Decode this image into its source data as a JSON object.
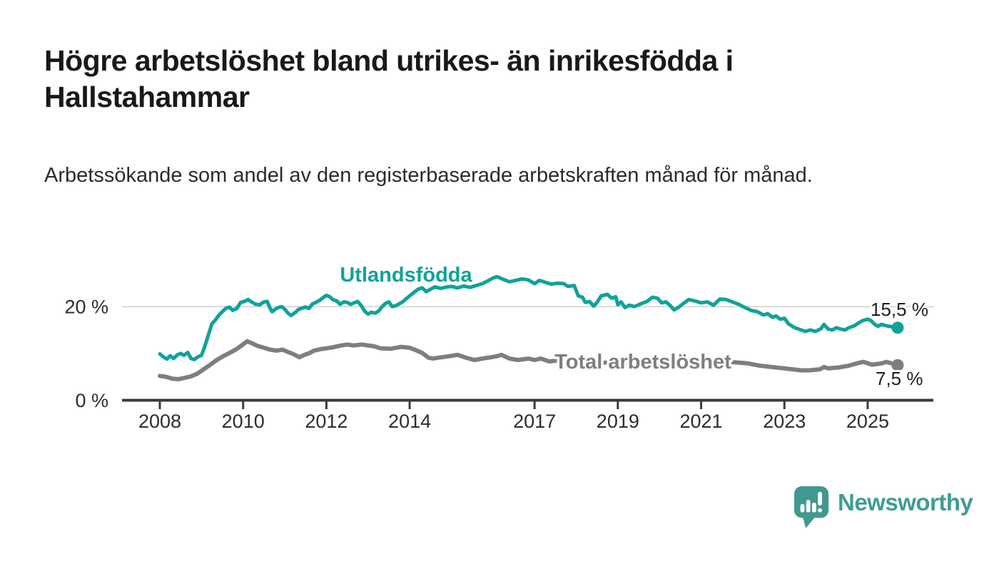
{
  "header": {
    "title": "Högre arbetslöshet bland utrikes- än inrikesfödda i Hallstahammar",
    "subtitle": "Arbetssökande som andel av den registerbaserade arbetskraften månad för månad."
  },
  "footer": {
    "brand": "Newsworthy",
    "logo_icon": "speech-bubble-bar-chart-icon"
  },
  "colors": {
    "foreign_born_line": "#10a29a",
    "total_line": "#7e7e82",
    "axis": "#3b3b3b",
    "gridline": "#d9d9d9",
    "text": "#191919",
    "brand_teal": "#41988f"
  },
  "chart_data": {
    "type": "line",
    "unit": "%",
    "x_ticks": [
      2008,
      2010,
      2012,
      2014,
      2017,
      2019,
      2021,
      2023,
      2025
    ],
    "y_ticks": [
      {
        "value": 0,
        "label": "0 %"
      },
      {
        "value": 20,
        "label": "20 %"
      }
    ],
    "xlim": [
      2008,
      2025.75
    ],
    "ylim": [
      0,
      27
    ],
    "grid": "horizontal-only",
    "legend_position": "inline-labels-on-lines",
    "series": [
      {
        "name": "Utlandsfödda",
        "color": "#10a29a",
        "end_value_label": "15,5 %",
        "points": [
          [
            2008.0,
            9.9
          ],
          [
            2008.08,
            9.3
          ],
          [
            2008.17,
            8.8
          ],
          [
            2008.25,
            9.5
          ],
          [
            2008.33,
            8.9
          ],
          [
            2008.42,
            9.7
          ],
          [
            2008.5,
            10.0
          ],
          [
            2008.58,
            9.6
          ],
          [
            2008.67,
            10.2
          ],
          [
            2008.75,
            8.9
          ],
          [
            2008.83,
            8.7
          ],
          [
            2008.92,
            9.3
          ],
          [
            2009.0,
            9.6
          ],
          [
            2009.08,
            11.5
          ],
          [
            2009.15,
            13.5
          ],
          [
            2009.25,
            16.3
          ],
          [
            2009.33,
            17.1
          ],
          [
            2009.42,
            18.2
          ],
          [
            2009.5,
            18.9
          ],
          [
            2009.58,
            19.6
          ],
          [
            2009.67,
            19.9
          ],
          [
            2009.75,
            19.2
          ],
          [
            2009.85,
            19.6
          ],
          [
            2009.94,
            20.9
          ],
          [
            2010.03,
            21.1
          ],
          [
            2010.12,
            21.5
          ],
          [
            2010.2,
            21.0
          ],
          [
            2010.3,
            20.5
          ],
          [
            2010.4,
            20.4
          ],
          [
            2010.5,
            21.0
          ],
          [
            2010.58,
            21.1
          ],
          [
            2010.65,
            19.6
          ],
          [
            2010.7,
            18.9
          ],
          [
            2010.78,
            19.5
          ],
          [
            2010.85,
            19.8
          ],
          [
            2010.93,
            20.0
          ],
          [
            2011.0,
            19.4
          ],
          [
            2011.08,
            18.6
          ],
          [
            2011.15,
            18.1
          ],
          [
            2011.25,
            18.7
          ],
          [
            2011.33,
            19.4
          ],
          [
            2011.42,
            19.7
          ],
          [
            2011.5,
            19.9
          ],
          [
            2011.58,
            19.6
          ],
          [
            2011.67,
            20.6
          ],
          [
            2011.75,
            20.9
          ],
          [
            2011.83,
            21.3
          ],
          [
            2011.92,
            21.9
          ],
          [
            2012.0,
            22.4
          ],
          [
            2012.08,
            22.1
          ],
          [
            2012.15,
            21.5
          ],
          [
            2012.25,
            21.2
          ],
          [
            2012.33,
            20.5
          ],
          [
            2012.42,
            21.0
          ],
          [
            2012.5,
            20.9
          ],
          [
            2012.58,
            20.5
          ],
          [
            2012.67,
            20.8
          ],
          [
            2012.75,
            21.1
          ],
          [
            2012.83,
            20.3
          ],
          [
            2012.92,
            19.0
          ],
          [
            2013.0,
            18.4
          ],
          [
            2013.08,
            18.8
          ],
          [
            2013.17,
            18.6
          ],
          [
            2013.25,
            19.0
          ],
          [
            2013.33,
            19.9
          ],
          [
            2013.42,
            20.7
          ],
          [
            2013.5,
            21.0
          ],
          [
            2013.58,
            20.0
          ],
          [
            2013.67,
            20.2
          ],
          [
            2013.75,
            20.6
          ],
          [
            2013.83,
            21.0
          ],
          [
            2013.92,
            21.7
          ],
          [
            2014.0,
            22.3
          ],
          [
            2014.1,
            23.0
          ],
          [
            2014.2,
            23.7
          ],
          [
            2014.3,
            24.0
          ],
          [
            2014.4,
            23.2
          ],
          [
            2014.5,
            23.7
          ],
          [
            2014.6,
            24.2
          ],
          [
            2014.75,
            23.9
          ],
          [
            2014.9,
            24.2
          ],
          [
            2015.0,
            24.3
          ],
          [
            2015.15,
            24.0
          ],
          [
            2015.3,
            24.4
          ],
          [
            2015.45,
            24.1
          ],
          [
            2015.6,
            24.5
          ],
          [
            2015.75,
            24.9
          ],
          [
            2015.9,
            25.6
          ],
          [
            2016.0,
            26.1
          ],
          [
            2016.1,
            26.4
          ],
          [
            2016.25,
            25.8
          ],
          [
            2016.4,
            25.3
          ],
          [
            2016.55,
            25.6
          ],
          [
            2016.7,
            25.9
          ],
          [
            2016.85,
            25.7
          ],
          [
            2017.0,
            24.9
          ],
          [
            2017.12,
            25.6
          ],
          [
            2017.25,
            25.2
          ],
          [
            2017.4,
            24.8
          ],
          [
            2017.55,
            25.0
          ],
          [
            2017.7,
            24.9
          ],
          [
            2017.8,
            24.3
          ],
          [
            2017.95,
            24.5
          ],
          [
            2018.05,
            22.3
          ],
          [
            2018.15,
            22.0
          ],
          [
            2018.22,
            20.9
          ],
          [
            2018.32,
            21.1
          ],
          [
            2018.42,
            20.1
          ],
          [
            2018.5,
            20.9
          ],
          [
            2018.6,
            22.3
          ],
          [
            2018.75,
            22.6
          ],
          [
            2018.85,
            21.8
          ],
          [
            2018.95,
            22.1
          ],
          [
            2019.0,
            20.4
          ],
          [
            2019.08,
            21.0
          ],
          [
            2019.17,
            19.8
          ],
          [
            2019.28,
            20.3
          ],
          [
            2019.4,
            20.0
          ],
          [
            2019.55,
            20.6
          ],
          [
            2019.7,
            21.1
          ],
          [
            2019.83,
            22.0
          ],
          [
            2019.95,
            21.8
          ],
          [
            2020.05,
            20.8
          ],
          [
            2020.15,
            21.0
          ],
          [
            2020.25,
            20.3
          ],
          [
            2020.35,
            19.3
          ],
          [
            2020.45,
            19.8
          ],
          [
            2020.55,
            20.5
          ],
          [
            2020.7,
            21.5
          ],
          [
            2020.85,
            21.2
          ],
          [
            2021.0,
            20.8
          ],
          [
            2021.15,
            21.0
          ],
          [
            2021.3,
            20.3
          ],
          [
            2021.45,
            21.6
          ],
          [
            2021.6,
            21.5
          ],
          [
            2021.75,
            21.0
          ],
          [
            2021.9,
            20.5
          ],
          [
            2022.05,
            19.8
          ],
          [
            2022.2,
            19.2
          ],
          [
            2022.35,
            18.9
          ],
          [
            2022.5,
            18.2
          ],
          [
            2022.6,
            18.5
          ],
          [
            2022.72,
            17.7
          ],
          [
            2022.8,
            18.0
          ],
          [
            2022.9,
            17.3
          ],
          [
            2023.0,
            17.5
          ],
          [
            2023.1,
            16.3
          ],
          [
            2023.25,
            15.5
          ],
          [
            2023.4,
            15.0
          ],
          [
            2023.5,
            14.7
          ],
          [
            2023.62,
            15.0
          ],
          [
            2023.75,
            14.7
          ],
          [
            2023.88,
            15.3
          ],
          [
            2023.95,
            16.2
          ],
          [
            2024.05,
            15.2
          ],
          [
            2024.15,
            15.0
          ],
          [
            2024.25,
            15.5
          ],
          [
            2024.35,
            15.2
          ],
          [
            2024.45,
            15.0
          ],
          [
            2024.55,
            15.5
          ],
          [
            2024.68,
            15.9
          ],
          [
            2024.78,
            16.5
          ],
          [
            2024.88,
            17.0
          ],
          [
            2025.0,
            17.3
          ],
          [
            2025.08,
            17.0
          ],
          [
            2025.17,
            16.2
          ],
          [
            2025.25,
            15.8
          ],
          [
            2025.33,
            16.2
          ],
          [
            2025.45,
            15.9
          ],
          [
            2025.58,
            15.7
          ],
          [
            2025.72,
            15.5
          ]
        ]
      },
      {
        "name": "Total arbetslöshet",
        "color": "#7e7e82",
        "end_value_label": "7,5 %",
        "points": [
          [
            2008.0,
            5.2
          ],
          [
            2008.15,
            5.0
          ],
          [
            2008.3,
            4.6
          ],
          [
            2008.45,
            4.5
          ],
          [
            2008.6,
            4.8
          ],
          [
            2008.75,
            5.1
          ],
          [
            2008.9,
            5.7
          ],
          [
            2009.05,
            6.6
          ],
          [
            2009.2,
            7.5
          ],
          [
            2009.35,
            8.5
          ],
          [
            2009.5,
            9.3
          ],
          [
            2009.65,
            10.0
          ],
          [
            2009.8,
            10.7
          ],
          [
            2009.95,
            11.6
          ],
          [
            2010.1,
            12.6
          ],
          [
            2010.2,
            12.2
          ],
          [
            2010.35,
            11.6
          ],
          [
            2010.5,
            11.2
          ],
          [
            2010.65,
            10.8
          ],
          [
            2010.8,
            10.6
          ],
          [
            2010.95,
            10.8
          ],
          [
            2011.05,
            10.4
          ],
          [
            2011.2,
            9.9
          ],
          [
            2011.35,
            9.2
          ],
          [
            2011.45,
            9.6
          ],
          [
            2011.6,
            10.1
          ],
          [
            2011.7,
            10.6
          ],
          [
            2011.85,
            10.9
          ],
          [
            2012.0,
            11.1
          ],
          [
            2012.15,
            11.3
          ],
          [
            2012.3,
            11.6
          ],
          [
            2012.5,
            11.9
          ],
          [
            2012.65,
            11.7
          ],
          [
            2012.85,
            11.9
          ],
          [
            2013.0,
            11.7
          ],
          [
            2013.15,
            11.5
          ],
          [
            2013.3,
            11.1
          ],
          [
            2013.55,
            11.0
          ],
          [
            2013.8,
            11.4
          ],
          [
            2014.0,
            11.2
          ],
          [
            2014.15,
            10.7
          ],
          [
            2014.3,
            10.1
          ],
          [
            2014.45,
            9.1
          ],
          [
            2014.55,
            8.9
          ],
          [
            2014.7,
            9.1
          ],
          [
            2014.95,
            9.4
          ],
          [
            2015.15,
            9.7
          ],
          [
            2015.35,
            9.1
          ],
          [
            2015.55,
            8.6
          ],
          [
            2015.75,
            8.9
          ],
          [
            2015.9,
            9.1
          ],
          [
            2016.1,
            9.4
          ],
          [
            2016.2,
            9.7
          ],
          [
            2016.4,
            8.9
          ],
          [
            2016.6,
            8.6
          ],
          [
            2016.85,
            8.9
          ],
          [
            2017.0,
            8.6
          ],
          [
            2017.15,
            8.9
          ],
          [
            2017.35,
            8.3
          ],
          [
            2017.55,
            8.5
          ],
          [
            2017.8,
            8.3
          ],
          [
            2018.0,
            8.4
          ],
          [
            2018.3,
            8.1
          ],
          [
            2018.6,
            8.0
          ],
          [
            2019.0,
            8.1
          ],
          [
            2019.4,
            7.9
          ],
          [
            2019.8,
            8.0
          ],
          [
            2020.2,
            8.3
          ],
          [
            2020.5,
            8.4
          ],
          [
            2020.8,
            8.2
          ],
          [
            2021.1,
            8.2
          ],
          [
            2021.5,
            8.3
          ],
          [
            2021.8,
            8.1
          ],
          [
            2022.1,
            7.9
          ],
          [
            2022.4,
            7.4
          ],
          [
            2022.7,
            7.1
          ],
          [
            2023.0,
            6.8
          ],
          [
            2023.2,
            6.6
          ],
          [
            2023.4,
            6.4
          ],
          [
            2023.6,
            6.4
          ],
          [
            2023.85,
            6.6
          ],
          [
            2023.95,
            7.1
          ],
          [
            2024.05,
            6.8
          ],
          [
            2024.3,
            7.0
          ],
          [
            2024.55,
            7.4
          ],
          [
            2024.75,
            7.9
          ],
          [
            2024.9,
            8.2
          ],
          [
            2025.0,
            7.9
          ],
          [
            2025.1,
            7.6
          ],
          [
            2025.35,
            7.9
          ],
          [
            2025.45,
            8.2
          ],
          [
            2025.6,
            7.8
          ],
          [
            2025.72,
            7.5
          ]
        ]
      }
    ]
  }
}
